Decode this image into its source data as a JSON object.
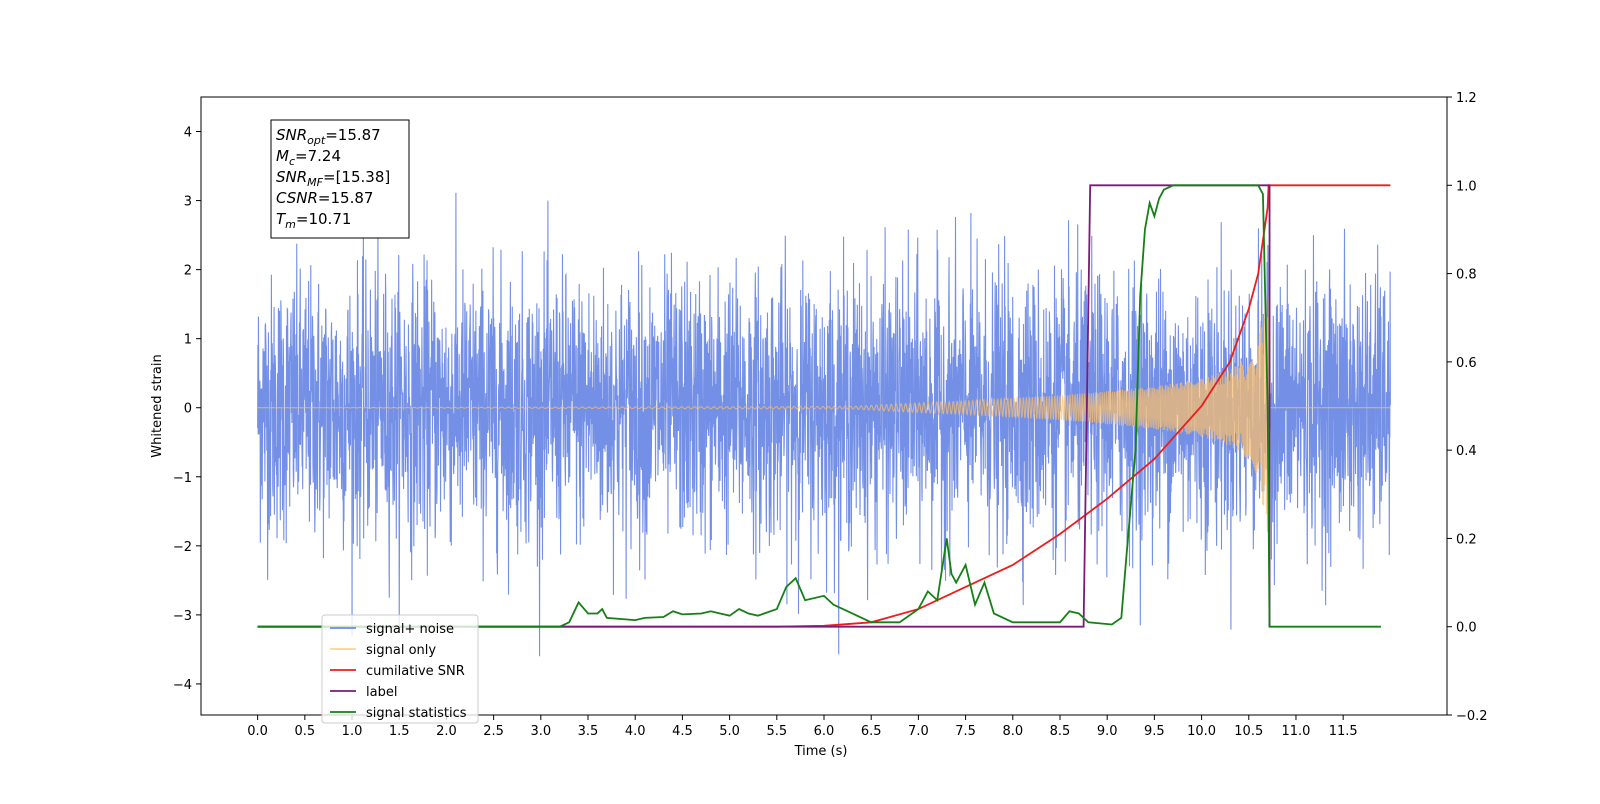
{
  "chart_data": {
    "type": "line",
    "xlabel": "Time (s)",
    "ylabel": "Whitened strain",
    "xlim": [
      -0.6,
      12.6
    ],
    "ylim": [
      -4.45,
      4.5
    ],
    "y2lim": [
      -0.2,
      1.2
    ],
    "x_ticks": [
      "0.0",
      "0.5",
      "1.0",
      "1.5",
      "2.0",
      "2.5",
      "3.0",
      "3.5",
      "4.0",
      "4.5",
      "5.0",
      "5.5",
      "6.0",
      "6.5",
      "7.0",
      "7.5",
      "8.0",
      "8.5",
      "9.0",
      "9.5",
      "10.0",
      "10.5",
      "11.0",
      "11.5"
    ],
    "y_ticks": [
      "−4",
      "−3",
      "−2",
      "−1",
      "0",
      "1",
      "2",
      "3",
      "4"
    ],
    "y2_ticks": [
      "−0.2",
      "0.0",
      "0.2",
      "0.4",
      "0.6",
      "0.8",
      "1.0",
      "1.2"
    ],
    "grid": false,
    "legend_position": "lower-left",
    "annotation": [
      {
        "sym": "SNR",
        "sub": "opt",
        "value": "=15.87"
      },
      {
        "sym": "M",
        "sub": "c",
        "value": "=7.24"
      },
      {
        "sym": "SNR",
        "sub": "MF",
        "value": "=[15.38]"
      },
      {
        "sym": "CSNR",
        "sub": "",
        "value": "=15.87"
      },
      {
        "sym": "T",
        "sub": "m",
        "value": "=10.71"
      }
    ],
    "series": [
      {
        "name": "signal+ noise",
        "axis": "left",
        "color": "#6b8ae5",
        "description": "whitened noise, amplitude envelope roughly ±2.5 with spikes to ±3.5 from 0.0 to 12.0 s",
        "x_range": [
          0.0,
          12.0
        ],
        "envelope": 2.5
      },
      {
        "name": "signal only",
        "axis": "left",
        "color": "#ffbf66",
        "description": "chirp signal, flat near 0 until ~6.3 s, growing to ±1.9 at merger 10.7 s, then 0",
        "envelope_points": [
          [
            0,
            0
          ],
          [
            6.3,
            0.02
          ],
          [
            7.0,
            0.07
          ],
          [
            7.5,
            0.1
          ],
          [
            8.0,
            0.14
          ],
          [
            8.5,
            0.18
          ],
          [
            9.0,
            0.24
          ],
          [
            9.5,
            0.31
          ],
          [
            10.0,
            0.42
          ],
          [
            10.3,
            0.55
          ],
          [
            10.5,
            0.75
          ],
          [
            10.6,
            1.0
          ],
          [
            10.67,
            1.6
          ],
          [
            10.71,
            1.9
          ],
          [
            10.72,
            0
          ],
          [
            12.0,
            0
          ]
        ]
      },
      {
        "name": "cumilative SNR",
        "axis": "right",
        "color": "#ee1c1c",
        "points": [
          [
            0,
            0
          ],
          [
            5.5,
            0
          ],
          [
            6.0,
            0.002
          ],
          [
            6.5,
            0.01
          ],
          [
            7.0,
            0.04
          ],
          [
            7.5,
            0.09
          ],
          [
            8.0,
            0.14
          ],
          [
            8.5,
            0.21
          ],
          [
            9.0,
            0.29
          ],
          [
            9.5,
            0.38
          ],
          [
            10.0,
            0.5
          ],
          [
            10.3,
            0.6
          ],
          [
            10.5,
            0.72
          ],
          [
            10.6,
            0.8
          ],
          [
            10.7,
            0.95
          ],
          [
            10.71,
            1.0
          ],
          [
            12.0,
            1.0
          ]
        ]
      },
      {
        "name": "label",
        "axis": "right",
        "color": "#7a1a7a",
        "points": [
          [
            0,
            0
          ],
          [
            8.75,
            0
          ],
          [
            8.82,
            1.0
          ],
          [
            10.72,
            1.0
          ],
          [
            10.72,
            0
          ]
        ]
      },
      {
        "name": "signal statistics",
        "axis": "right",
        "color": "#158015",
        "points": [
          [
            0,
            0
          ],
          [
            3.2,
            0
          ],
          [
            3.3,
            0.01
          ],
          [
            3.4,
            0.055
          ],
          [
            3.5,
            0.03
          ],
          [
            3.6,
            0.03
          ],
          [
            3.65,
            0.04
          ],
          [
            3.7,
            0.02
          ],
          [
            4.0,
            0.015
          ],
          [
            4.1,
            0.02
          ],
          [
            4.3,
            0.022
          ],
          [
            4.4,
            0.035
          ],
          [
            4.5,
            0.028
          ],
          [
            4.7,
            0.03
          ],
          [
            4.8,
            0.035
          ],
          [
            4.9,
            0.03
          ],
          [
            5.0,
            0.025
          ],
          [
            5.1,
            0.04
          ],
          [
            5.2,
            0.03
          ],
          [
            5.3,
            0.025
          ],
          [
            5.5,
            0.04
          ],
          [
            5.6,
            0.09
          ],
          [
            5.7,
            0.11
          ],
          [
            5.8,
            0.06
          ],
          [
            6.0,
            0.07
          ],
          [
            6.1,
            0.05
          ],
          [
            6.3,
            0.03
          ],
          [
            6.5,
            0.01
          ],
          [
            6.8,
            0.01
          ],
          [
            7.0,
            0.04
          ],
          [
            7.1,
            0.08
          ],
          [
            7.2,
            0.06
          ],
          [
            7.3,
            0.2
          ],
          [
            7.35,
            0.12
          ],
          [
            7.4,
            0.1
          ],
          [
            7.5,
            0.14
          ],
          [
            7.6,
            0.05
          ],
          [
            7.7,
            0.1
          ],
          [
            7.8,
            0.03
          ],
          [
            8.0,
            0.01
          ],
          [
            8.5,
            0.01
          ],
          [
            8.6,
            0.035
          ],
          [
            8.7,
            0.03
          ],
          [
            8.8,
            0.01
          ],
          [
            9.05,
            0.005
          ],
          [
            9.15,
            0.02
          ],
          [
            9.2,
            0.15
          ],
          [
            9.3,
            0.4
          ],
          [
            9.35,
            0.75
          ],
          [
            9.4,
            0.9
          ],
          [
            9.45,
            0.96
          ],
          [
            9.5,
            0.93
          ],
          [
            9.55,
            0.97
          ],
          [
            9.6,
            0.99
          ],
          [
            9.7,
            1.0
          ],
          [
            10.6,
            1.0
          ],
          [
            10.65,
            0.98
          ],
          [
            10.7,
            0.5
          ],
          [
            10.72,
            0
          ],
          [
            11.9,
            0
          ]
        ]
      }
    ]
  }
}
